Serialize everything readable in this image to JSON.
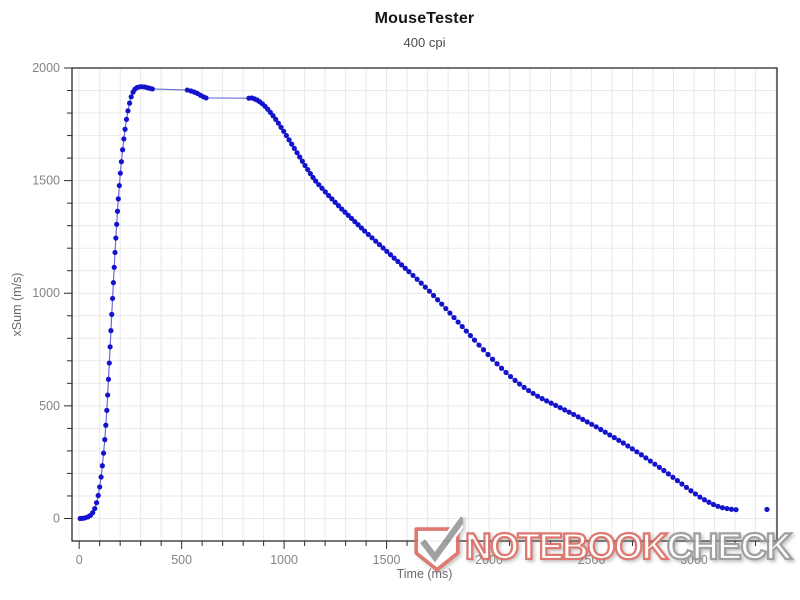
{
  "chart_data": {
    "type": "scatter",
    "title": "MouseTester",
    "subtitle": "400 cpi",
    "xlabel": "Time (ms)",
    "ylabel": "xSum (m/s)",
    "xlim": [
      -35,
      3405
    ],
    "ylim": [
      -100,
      2000
    ],
    "x_major_ticks": [
      0,
      500,
      1000,
      1500,
      2000,
      2500,
      3000
    ],
    "y_major_ticks": [
      0,
      500,
      1000,
      1500,
      2000
    ],
    "x_minor_step": 100,
    "x_minor_range": [
      0,
      3400
    ],
    "y_minor_step": 100,
    "y_minor_range": [
      0,
      2000
    ],
    "grid": true,
    "legend": "none",
    "colors": {
      "dot": "#1313cc",
      "line": "#6b6bd9",
      "grid": "#e9e9e9",
      "border": "#1a1a1a",
      "tick": "#2b2b2b",
      "tick_label": "#848484",
      "axis_label": "#6a6a6a"
    },
    "series": [
      {
        "name": "xSum",
        "draw_line": true,
        "points": [
          [
            5,
            0
          ],
          [
            18,
            1
          ],
          [
            30,
            3
          ],
          [
            43,
            7
          ],
          [
            55,
            14
          ],
          [
            66,
            26
          ],
          [
            76,
            44
          ],
          [
            85,
            70
          ],
          [
            93,
            102
          ],
          [
            100,
            140
          ],
          [
            107,
            184
          ],
          [
            113,
            234
          ],
          [
            119,
            290
          ],
          [
            125,
            350
          ],
          [
            130,
            414
          ],
          [
            135,
            480
          ],
          [
            139,
            548
          ],
          [
            143,
            618
          ],
          [
            147,
            690
          ],
          [
            151,
            762
          ],
          [
            155,
            834
          ],
          [
            159,
            906
          ],
          [
            163,
            977
          ],
          [
            167,
            1047
          ],
          [
            171,
            1115
          ],
          [
            175,
            1181
          ],
          [
            179,
            1245
          ],
          [
            183,
            1306
          ],
          [
            187,
            1364
          ],
          [
            191,
            1419
          ],
          [
            196,
            1478
          ],
          [
            201,
            1533
          ],
          [
            206,
            1584
          ],
          [
            212,
            1637
          ],
          [
            218,
            1685
          ],
          [
            224,
            1728
          ],
          [
            231,
            1772
          ],
          [
            238,
            1810
          ],
          [
            246,
            1844
          ],
          [
            254,
            1872
          ],
          [
            263,
            1893
          ],
          [
            272,
            1906
          ],
          [
            282,
            1913
          ],
          [
            293,
            1916
          ],
          [
            305,
            1917
          ],
          [
            318,
            1916
          ],
          [
            331,
            1913
          ],
          [
            344,
            1910
          ],
          [
            357,
            1907
          ],
          [
            528,
            1902
          ],
          [
            546,
            1898
          ],
          [
            562,
            1893
          ],
          [
            577,
            1887
          ],
          [
            592,
            1879
          ],
          [
            606,
            1872
          ],
          [
            619,
            1867
          ],
          [
            828,
            1866
          ],
          [
            842,
            1867
          ],
          [
            855,
            1863
          ],
          [
            868,
            1858
          ],
          [
            881,
            1850
          ],
          [
            894,
            1841
          ],
          [
            907,
            1830
          ],
          [
            920,
            1817
          ],
          [
            933,
            1803
          ],
          [
            946,
            1788
          ],
          [
            959,
            1772
          ],
          [
            972,
            1755
          ],
          [
            985,
            1737
          ],
          [
            998,
            1719
          ],
          [
            1011,
            1700
          ],
          [
            1024,
            1681
          ],
          [
            1037,
            1662
          ],
          [
            1050,
            1643
          ],
          [
            1063,
            1624
          ],
          [
            1076,
            1605
          ],
          [
            1089,
            1586
          ],
          [
            1102,
            1567
          ],
          [
            1115,
            1549
          ],
          [
            1128,
            1531
          ],
          [
            1141,
            1514
          ],
          [
            1154,
            1498
          ],
          [
            1169,
            1482
          ],
          [
            1185,
            1466
          ],
          [
            1201,
            1450
          ],
          [
            1217,
            1434
          ],
          [
            1233,
            1419
          ],
          [
            1249,
            1404
          ],
          [
            1265,
            1389
          ],
          [
            1281,
            1374
          ],
          [
            1297,
            1360
          ],
          [
            1313,
            1346
          ],
          [
            1329,
            1332
          ],
          [
            1345,
            1318
          ],
          [
            1361,
            1304
          ],
          [
            1377,
            1290
          ],
          [
            1393,
            1276
          ],
          [
            1411,
            1261
          ],
          [
            1429,
            1246
          ],
          [
            1447,
            1231
          ],
          [
            1465,
            1216
          ],
          [
            1483,
            1201
          ],
          [
            1501,
            1186
          ],
          [
            1519,
            1171
          ],
          [
            1537,
            1156
          ],
          [
            1555,
            1141
          ],
          [
            1573,
            1126
          ],
          [
            1591,
            1111
          ],
          [
            1609,
            1096
          ],
          [
            1629,
            1079
          ],
          [
            1649,
            1062
          ],
          [
            1669,
            1045
          ],
          [
            1689,
            1027
          ],
          [
            1709,
            1009
          ],
          [
            1729,
            990
          ],
          [
            1749,
            971
          ],
          [
            1769,
            952
          ],
          [
            1789,
            932
          ],
          [
            1809,
            912
          ],
          [
            1829,
            892
          ],
          [
            1849,
            872
          ],
          [
            1869,
            852
          ],
          [
            1889,
            832
          ],
          [
            1909,
            812
          ],
          [
            1929,
            792
          ],
          [
            1951,
            770
          ],
          [
            1973,
            749
          ],
          [
            1995,
            728
          ],
          [
            2017,
            707
          ],
          [
            2039,
            687
          ],
          [
            2061,
            667
          ],
          [
            2083,
            648
          ],
          [
            2105,
            630
          ],
          [
            2127,
            613
          ],
          [
            2149,
            597
          ],
          [
            2171,
            582
          ],
          [
            2193,
            568
          ],
          [
            2215,
            555
          ],
          [
            2237,
            543
          ],
          [
            2259,
            532
          ],
          [
            2281,
            522
          ],
          [
            2303,
            512
          ],
          [
            2325,
            502
          ],
          [
            2347,
            492
          ],
          [
            2369,
            482
          ],
          [
            2391,
            472
          ],
          [
            2413,
            462
          ],
          [
            2435,
            451
          ],
          [
            2457,
            440
          ],
          [
            2479,
            429
          ],
          [
            2501,
            418
          ],
          [
            2523,
            407
          ],
          [
            2545,
            395
          ],
          [
            2567,
            383
          ],
          [
            2589,
            371
          ],
          [
            2611,
            359
          ],
          [
            2633,
            347
          ],
          [
            2655,
            335
          ],
          [
            2677,
            322
          ],
          [
            2699,
            309
          ],
          [
            2721,
            296
          ],
          [
            2743,
            283
          ],
          [
            2765,
            269
          ],
          [
            2787,
            255
          ],
          [
            2809,
            241
          ],
          [
            2831,
            227
          ],
          [
            2853,
            213
          ],
          [
            2875,
            198
          ],
          [
            2897,
            183
          ],
          [
            2919,
            168
          ],
          [
            2941,
            153
          ],
          [
            2963,
            138
          ],
          [
            2985,
            123
          ],
          [
            3007,
            109
          ],
          [
            3029,
            95
          ],
          [
            3051,
            83
          ],
          [
            3073,
            72
          ],
          [
            3095,
            62
          ],
          [
            3117,
            54
          ],
          [
            3139,
            48
          ],
          [
            3161,
            44
          ],
          [
            3183,
            41
          ],
          [
            3205,
            39
          ]
        ]
      },
      {
        "name": "xSum-trailing-point",
        "draw_line": false,
        "points": [
          [
            3356,
            40
          ]
        ]
      }
    ]
  },
  "watermark": {
    "part1": "NOTEBOOK",
    "part2": "CHECK",
    "red": "#db6f66",
    "gray": "#9a9a9a"
  }
}
